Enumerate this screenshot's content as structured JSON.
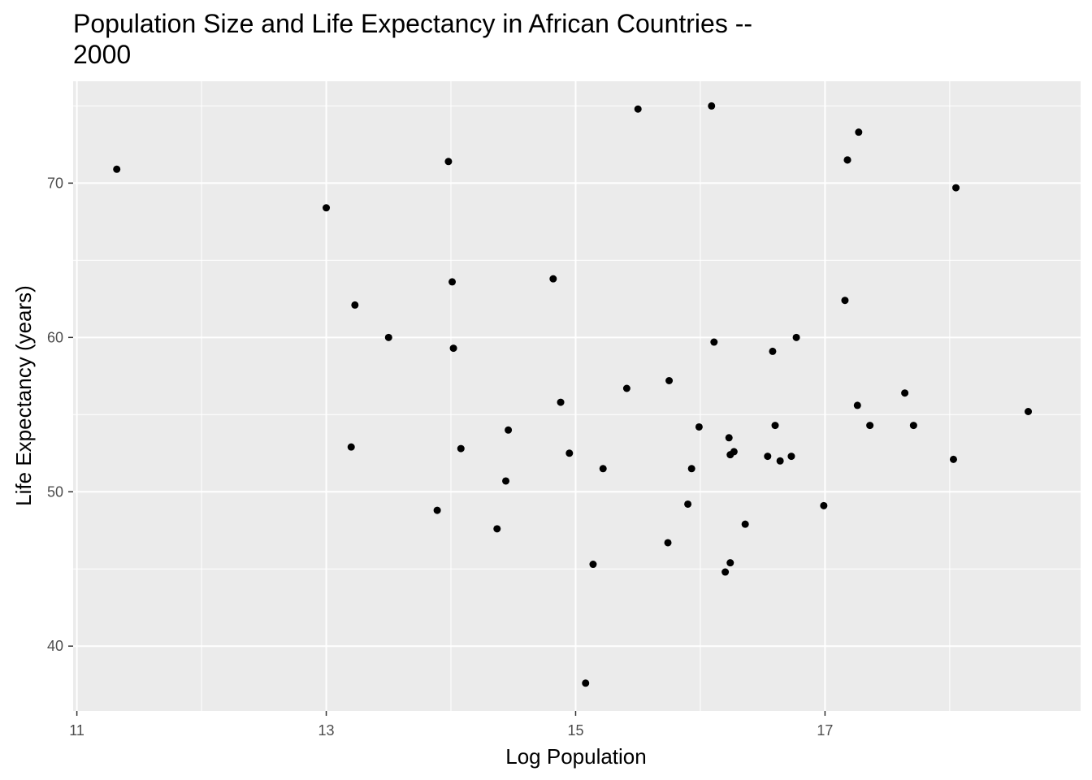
{
  "chart_data": {
    "type": "scatter",
    "title": "Population Size and Life Expectancy in African Countries --\n2000",
    "xlabel": "Log Population",
    "ylabel": "Life Expectancy (years)",
    "xlim": [
      10.97,
      19.05
    ],
    "ylim": [
      35.8,
      76.6
    ],
    "x_major_ticks": [
      11,
      13,
      15,
      17
    ],
    "x_minor_ticks": [
      12,
      14,
      16,
      18
    ],
    "y_major_ticks": [
      40,
      50,
      60,
      70
    ],
    "y_minor_ticks": [
      45,
      55,
      65,
      75
    ],
    "x_tick_labels": [
      "11",
      "13",
      "15",
      "17"
    ],
    "y_tick_labels": [
      "40",
      "50",
      "60",
      "70"
    ],
    "grid": true,
    "colors": {
      "panel_background": "#ebebeb",
      "grid_major": "#ffffff",
      "point": "#000000",
      "tick_text": "#4d4d4d"
    },
    "x": [
      11.32,
      13.0,
      13.2,
      13.23,
      13.5,
      13.89,
      13.98,
      14.01,
      14.02,
      14.08,
      14.37,
      14.44,
      14.46,
      14.82,
      14.88,
      14.95,
      15.08,
      15.14,
      15.22,
      15.41,
      15.5,
      15.74,
      15.75,
      15.9,
      15.93,
      15.99,
      16.09,
      16.11,
      16.2,
      16.23,
      16.24,
      16.24,
      16.27,
      16.36,
      16.54,
      16.58,
      16.6,
      16.64,
      16.73,
      16.77,
      16.99,
      17.16,
      17.18,
      17.18,
      17.26,
      17.27,
      17.36,
      17.64,
      17.71,
      18.03,
      18.05,
      18.63
    ],
    "y": [
      70.9,
      68.4,
      52.9,
      62.1,
      60.0,
      48.8,
      71.4,
      63.6,
      59.3,
      52.8,
      47.6,
      50.7,
      54.0,
      63.8,
      55.8,
      52.5,
      37.6,
      45.3,
      51.5,
      56.7,
      74.8,
      46.7,
      57.2,
      49.2,
      51.5,
      54.2,
      75.0,
      59.7,
      44.8,
      53.5,
      45.4,
      52.4,
      52.6,
      47.9,
      52.3,
      59.1,
      54.3,
      52.0,
      52.3,
      60.0,
      49.1,
      62.4,
      71.5,
      71.5,
      55.6,
      73.3,
      54.3,
      56.4,
      54.3,
      52.1,
      69.7,
      55.2
    ]
  }
}
